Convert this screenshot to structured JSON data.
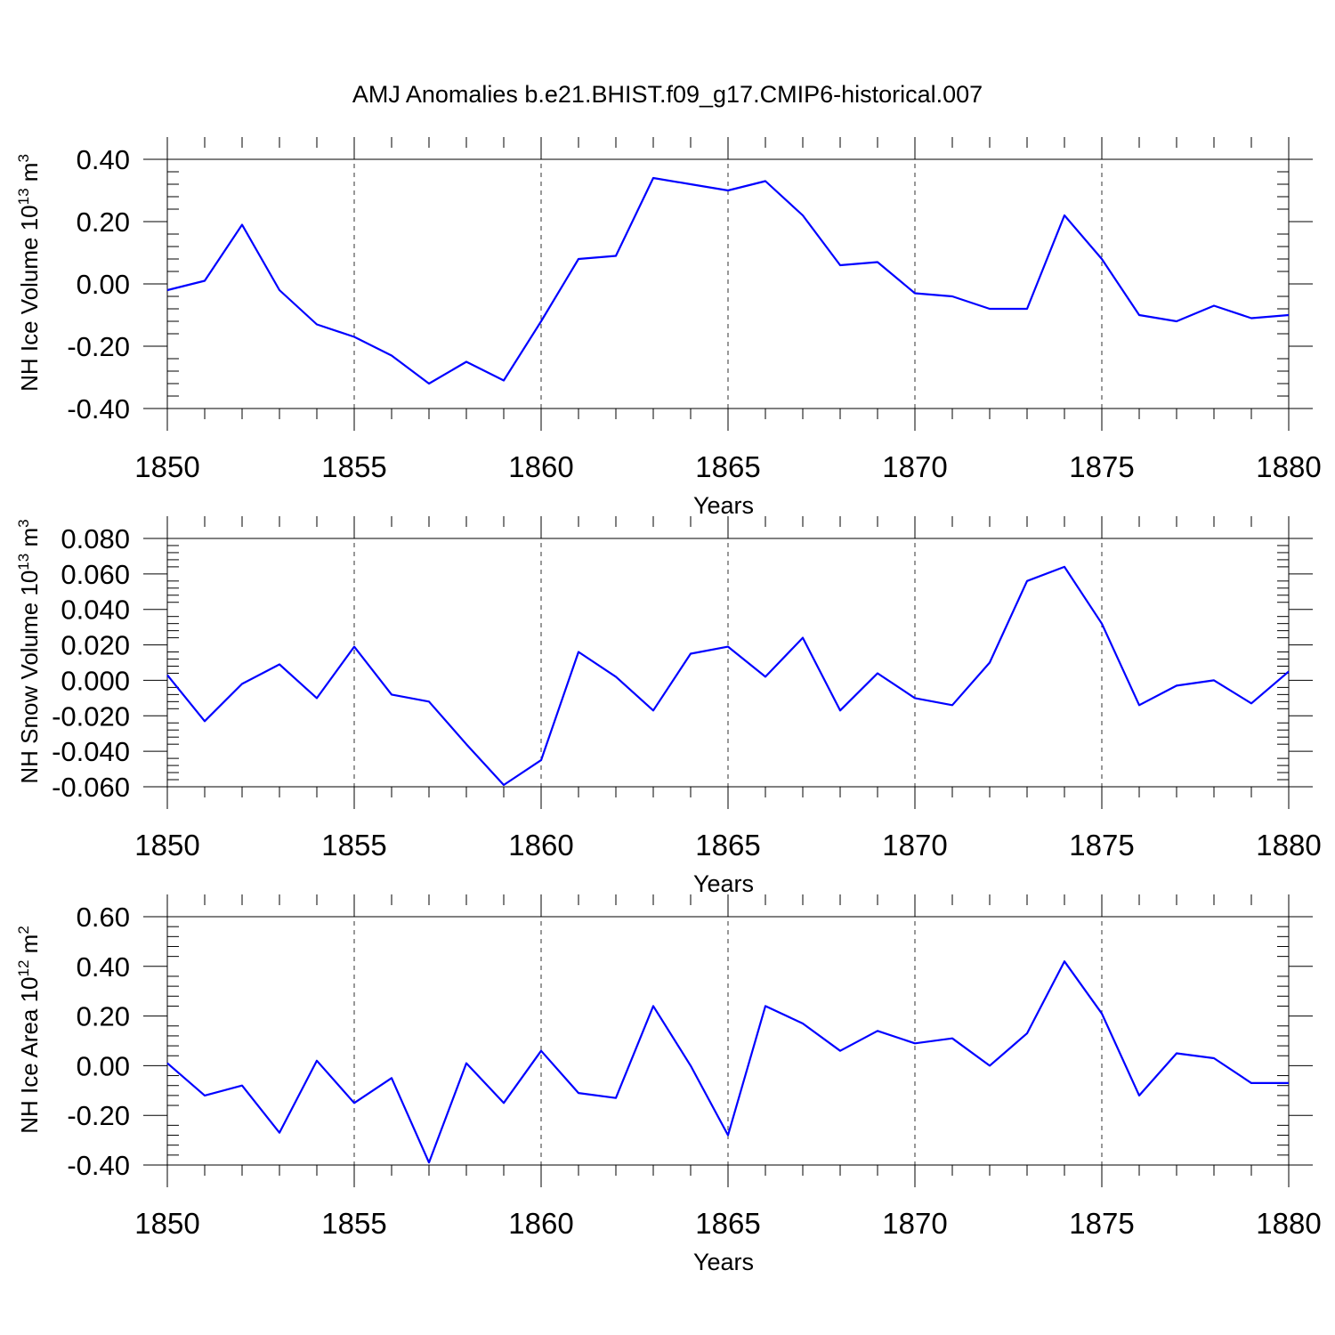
{
  "figure_title": "AMJ Anomalies b.e21.BHIST.f09_g17.CMIP6-historical.007",
  "colors": {
    "series": "#0000ff"
  },
  "chart_data": [
    {
      "type": "line",
      "ylabel": "NH Ice Volume 10",
      "ylabel_exp": "13",
      "ylabel_unit": "m",
      "ylabel_unit_exp": "3",
      "xlabel": "Years",
      "xlim": [
        1850,
        1880
      ],
      "ylim": [
        -0.4,
        0.4
      ],
      "yticks": [
        -0.4,
        -0.2,
        0.0,
        0.2,
        0.4
      ],
      "ytick_labels": [
        "-0.40",
        "-0.20",
        "0.00",
        "0.20",
        "0.40"
      ],
      "xticks": [
        1850,
        1855,
        1860,
        1865,
        1870,
        1875,
        1880
      ],
      "xtick_labels": [
        "1850",
        "1855",
        "1860",
        "1865",
        "1870",
        "1875",
        "1880"
      ],
      "grid": "vertical dashed at major x ticks",
      "x": [
        1850,
        1851,
        1852,
        1853,
        1854,
        1855,
        1856,
        1857,
        1858,
        1859,
        1860,
        1861,
        1862,
        1863,
        1864,
        1865,
        1866,
        1867,
        1868,
        1869,
        1870,
        1871,
        1872,
        1873,
        1874,
        1875,
        1876,
        1877,
        1878,
        1879,
        1880
      ],
      "series": [
        {
          "values": [
            -0.02,
            0.01,
            0.19,
            -0.02,
            -0.13,
            -0.17,
            -0.23,
            -0.32,
            -0.25,
            -0.31,
            -0.12,
            0.08,
            0.09,
            0.34,
            0.32,
            0.3,
            0.33,
            0.22,
            0.06,
            0.07,
            -0.03,
            -0.04,
            -0.08,
            -0.08,
            0.22,
            0.08,
            -0.1,
            -0.12,
            -0.07,
            -0.11,
            -0.1
          ]
        }
      ]
    },
    {
      "type": "line",
      "ylabel": "NH Snow Volume 10",
      "ylabel_exp": "13",
      "ylabel_unit": "m",
      "ylabel_unit_exp": "3",
      "xlabel": "Years",
      "xlim": [
        1850,
        1880
      ],
      "ylim": [
        -0.06,
        0.08
      ],
      "yticks": [
        -0.06,
        -0.04,
        -0.02,
        0.0,
        0.02,
        0.04,
        0.06,
        0.08
      ],
      "ytick_labels": [
        "-0.060",
        "-0.040",
        "-0.020",
        "0.000",
        "0.020",
        "0.040",
        "0.060",
        "0.080"
      ],
      "xticks": [
        1850,
        1855,
        1860,
        1865,
        1870,
        1875,
        1880
      ],
      "xtick_labels": [
        "1850",
        "1855",
        "1860",
        "1865",
        "1870",
        "1875",
        "1880"
      ],
      "grid": "vertical dashed at major x ticks",
      "x": [
        1850,
        1851,
        1852,
        1853,
        1854,
        1855,
        1856,
        1857,
        1858,
        1859,
        1860,
        1861,
        1862,
        1863,
        1864,
        1865,
        1866,
        1867,
        1868,
        1869,
        1870,
        1871,
        1872,
        1873,
        1874,
        1875,
        1876,
        1877,
        1878,
        1879,
        1880
      ],
      "series": [
        {
          "values": [
            0.003,
            -0.023,
            -0.002,
            0.009,
            -0.01,
            0.019,
            -0.008,
            -0.012,
            -0.036,
            -0.059,
            -0.045,
            0.016,
            0.002,
            -0.017,
            0.015,
            0.019,
            0.002,
            0.024,
            -0.017,
            0.004,
            -0.01,
            -0.014,
            0.01,
            0.056,
            0.064,
            0.032,
            -0.014,
            -0.003,
            0.0,
            -0.013,
            0.005
          ]
        }
      ]
    },
    {
      "type": "line",
      "ylabel": "NH Ice Area 10",
      "ylabel_exp": "12",
      "ylabel_unit": "m",
      "ylabel_unit_exp": "2",
      "xlabel": "Years",
      "xlim": [
        1850,
        1880
      ],
      "ylim": [
        -0.4,
        0.6
      ],
      "yticks": [
        -0.4,
        -0.2,
        0.0,
        0.2,
        0.4,
        0.6
      ],
      "ytick_labels": [
        "-0.40",
        "-0.20",
        "0.00",
        "0.20",
        "0.40",
        "0.60"
      ],
      "xticks": [
        1850,
        1855,
        1860,
        1865,
        1870,
        1875,
        1880
      ],
      "xtick_labels": [
        "1850",
        "1855",
        "1860",
        "1865",
        "1870",
        "1875",
        "1880"
      ],
      "grid": "vertical dashed at major x ticks",
      "x": [
        1850,
        1851,
        1852,
        1853,
        1854,
        1855,
        1856,
        1857,
        1858,
        1859,
        1860,
        1861,
        1862,
        1863,
        1864,
        1865,
        1866,
        1867,
        1868,
        1869,
        1870,
        1871,
        1872,
        1873,
        1874,
        1875,
        1876,
        1877,
        1878,
        1879,
        1880
      ],
      "series": [
        {
          "values": [
            0.01,
            -0.12,
            -0.08,
            -0.27,
            0.02,
            -0.15,
            -0.05,
            -0.39,
            0.01,
            -0.15,
            0.06,
            -0.11,
            -0.13,
            0.24,
            0.0,
            -0.28,
            0.24,
            0.17,
            0.06,
            0.14,
            0.09,
            0.11,
            0.0,
            0.13,
            0.42,
            0.21,
            -0.12,
            0.05,
            0.03,
            -0.07,
            -0.07
          ]
        }
      ]
    }
  ]
}
